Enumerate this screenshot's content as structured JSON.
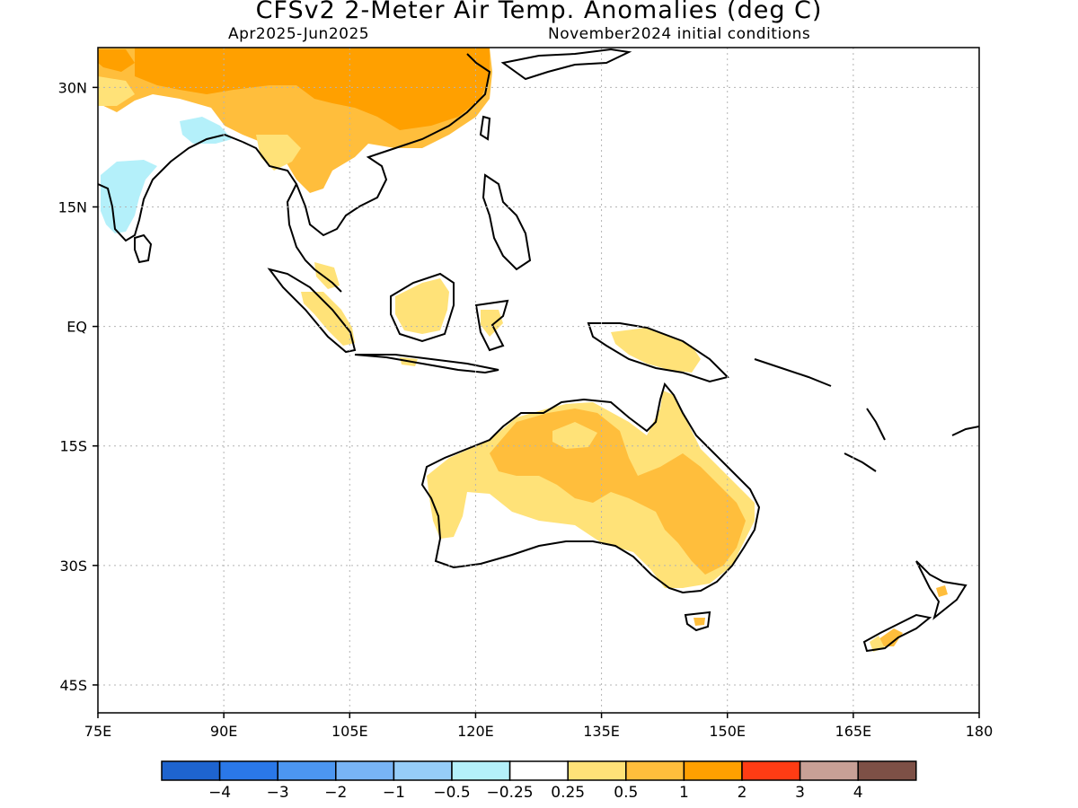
{
  "title": "CFSv2 2-Meter Air Temp. Anomalies (deg C)",
  "subtitle_left": "Apr2025-Jun2025",
  "subtitle_right": "November2024 initial conditions",
  "map": {
    "lon_range": [
      75,
      180
    ],
    "lat_range": [
      -48.5,
      35
    ],
    "x_ticks": [
      "75E",
      "90E",
      "105E",
      "120E",
      "135E",
      "150E",
      "165E",
      "180"
    ],
    "y_ticks": [
      "30N",
      "15N",
      "EQ",
      "15S",
      "30S",
      "45S"
    ],
    "gridlines": "dotted"
  },
  "colorbar": {
    "colors": [
      "#1e64cf",
      "#2a78e8",
      "#4c96f0",
      "#78b4f5",
      "#96cdf8",
      "#b4f0fa",
      "#ffffff",
      "#ffe278",
      "#ffbe3c",
      "#ffa000",
      "#ff3c14",
      "#c8a096",
      "#7d5046"
    ],
    "labels": [
      "-4",
      "-3",
      "-2",
      "-1",
      "-0.5",
      "-0.25",
      "0.25",
      "0.5",
      "1",
      "2",
      "3",
      "4"
    ]
  },
  "colors": {
    "land_outline": "#000000",
    "warm_0_25_0_5": "#ffe278",
    "warm_0_5_1": "#ffbe3c",
    "warm_1_2": "#ffa000",
    "cool_0_25_0_5": "#b4f0fa"
  }
}
